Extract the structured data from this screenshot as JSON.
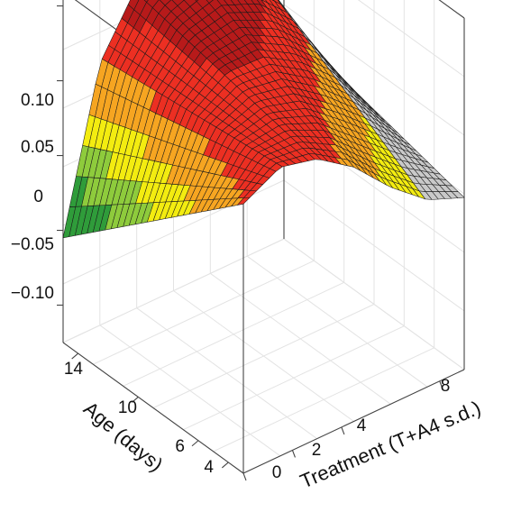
{
  "chart_data": {
    "type": "surface3d",
    "x_axis": {
      "label": "Treatment (T+A4 s.d.)",
      "ticks": [
        0,
        2,
        4,
        8
      ],
      "range": [
        0,
        9
      ]
    },
    "y_axis": {
      "label": "Age (days)",
      "ticks": [
        4,
        6,
        10,
        14
      ],
      "range": [
        3,
        15
      ]
    },
    "z_axis": {
      "label": "",
      "ticks": [
        "0.10",
        "0.05",
        "0",
        "−0.05",
        "−0.10"
      ],
      "range": [
        -0.125,
        0.11
      ]
    },
    "surface": {
      "description_of_shape": "ridge along age axis; peak near treatment ~1.5, decreasing toward higher treatment and higher at older ages",
      "z_at_age_3": {
        "treatment": [
          0,
          1.5,
          3,
          4.5,
          6,
          7.5,
          9
        ],
        "z": [
          0.055,
          0.068,
          0.062,
          0.045,
          0.02,
          0.0,
          -0.01
        ]
      },
      "z_at_age_15": {
        "treatment": [
          0,
          1.5,
          3,
          4.5,
          6,
          7.5,
          9
        ],
        "z": [
          -0.055,
          0.05,
          0.09,
          0.105,
          0.1,
          0.075,
          0.02
        ]
      }
    },
    "colormap": [
      "#0a5d22",
      "#2f9c3a",
      "#8ecb3c",
      "#f3ec10",
      "#f6a521",
      "#ec2f22",
      "#b71a1a"
    ],
    "back_side_color": "#c9c9c9",
    "grid": true
  }
}
